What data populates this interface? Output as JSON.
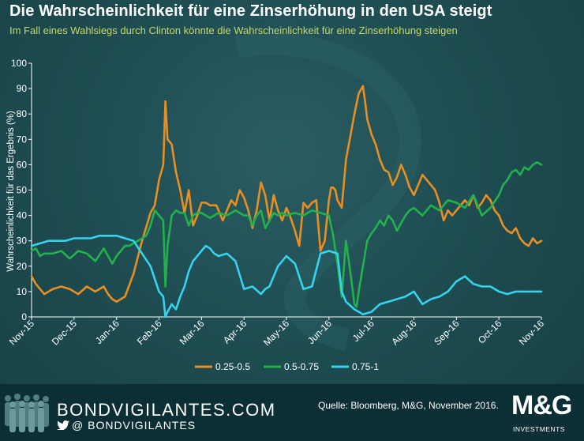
{
  "header": {
    "title": "Die Wahrscheinlichkeit  für eine Zinserhöhung in den USA steigt",
    "subtitle": "Im Fall eines Wahlsiegs durch Clinton könnte die Wahrscheinlichkeit für eine Zinserhöhung steigen"
  },
  "footer": {
    "brand": "BONDVIGILANTES.COM",
    "handle": "BONDVIGILANTES",
    "handle_prefix": "@",
    "source": "Quelle: Bloomberg, M&G,  November 2016.",
    "logo_text": "M&G",
    "logo_sub": "INVESTMENTS"
  },
  "chart_data": {
    "type": "line",
    "title": "Die Wahrscheinlichkeit  für eine Zinserhöhung in den USA steigt",
    "xlabel": "",
    "ylabel": "Wahrscheinlichkeit für das Ergebnis (%)",
    "ylim": [
      0,
      100
    ],
    "yticks": [
      0,
      10,
      20,
      30,
      40,
      50,
      60,
      70,
      80,
      90,
      100
    ],
    "xlim": [
      0,
      12
    ],
    "xticks": [
      "Nov-15",
      "Dec-15",
      "Jan-16",
      "Feb-16",
      "Mar-16",
      "Apr-16",
      "May-16",
      "Jun-16",
      "Jul-16",
      "Aug-16",
      "Sep-16",
      "Oct-16",
      "Nov-16"
    ],
    "legend_position": "bottom",
    "series": [
      {
        "name": "0.25-0.5",
        "color": "#e88f23",
        "x": [
          0,
          0.1,
          0.2,
          0.3,
          0.5,
          0.7,
          0.9,
          1.1,
          1.3,
          1.5,
          1.7,
          1.8,
          1.9,
          2.0,
          2.1,
          2.2,
          2.4,
          2.6,
          2.8,
          2.9,
          3.0,
          3.1,
          3.15,
          3.2,
          3.3,
          3.4,
          3.5,
          3.6,
          3.7,
          3.8,
          3.9,
          4.0,
          4.1,
          4.2,
          4.35,
          4.5,
          4.6,
          4.7,
          4.8,
          4.9,
          5.0,
          5.1,
          5.2,
          5.3,
          5.4,
          5.5,
          5.6,
          5.7,
          5.8,
          5.9,
          6.0,
          6.1,
          6.2,
          6.3,
          6.4,
          6.5,
          6.6,
          6.7,
          6.8,
          6.9,
          7.0,
          7.05,
          7.1,
          7.15,
          7.2,
          7.3,
          7.4,
          7.5,
          7.6,
          7.7,
          7.8,
          7.85,
          7.9,
          8.0,
          8.1,
          8.2,
          8.3,
          8.4,
          8.5,
          8.6,
          8.7,
          8.8,
          8.9,
          9.0,
          9.1,
          9.2,
          9.3,
          9.4,
          9.5,
          9.6,
          9.7,
          9.8,
          9.9,
          10.0,
          10.1,
          10.2,
          10.3,
          10.4,
          10.5,
          10.6,
          10.7,
          10.8,
          10.9,
          11.0,
          11.1,
          11.2,
          11.3,
          11.4,
          11.5,
          11.6,
          11.7,
          11.8,
          11.9,
          12.0
        ],
        "values": [
          16,
          13,
          11,
          9,
          11,
          12,
          11,
          9,
          12,
          10,
          12,
          9,
          7,
          6,
          7,
          8,
          17,
          30,
          41,
          44,
          54,
          60,
          85,
          70,
          68,
          57,
          50,
          41,
          50,
          36,
          40,
          45,
          45,
          44,
          44,
          38,
          42,
          46,
          44,
          50,
          47,
          42,
          35,
          42,
          53,
          48,
          38,
          48,
          42,
          38,
          43,
          39,
          34,
          28,
          45,
          43,
          45,
          46,
          26,
          30,
          46,
          51,
          51,
          50,
          46,
          43,
          62,
          71,
          80,
          88,
          91,
          85,
          78,
          72,
          68,
          62,
          58,
          57,
          52,
          55,
          60,
          56,
          51,
          48,
          52,
          56,
          54,
          52,
          50,
          45,
          38,
          42,
          40,
          42,
          44,
          46,
          44,
          48,
          43,
          45,
          48,
          46,
          42,
          40,
          36,
          34,
          33,
          35,
          31,
          29,
          28,
          31,
          29,
          30
        ]
      },
      {
        "name": "0.5-0.75",
        "color": "#22b14c",
        "x": [
          0,
          0.1,
          0.2,
          0.3,
          0.5,
          0.7,
          0.9,
          1.1,
          1.3,
          1.5,
          1.7,
          1.9,
          2.0,
          2.1,
          2.2,
          2.3,
          2.4,
          2.5,
          2.6,
          2.7,
          2.8,
          2.9,
          3.0,
          3.1,
          3.15,
          3.2,
          3.3,
          3.4,
          3.5,
          3.6,
          3.7,
          3.8,
          3.9,
          4.0,
          4.2,
          4.4,
          4.6,
          4.8,
          5.0,
          5.1,
          5.2,
          5.3,
          5.4,
          5.5,
          5.6,
          5.7,
          5.8,
          5.9,
          6.0,
          6.2,
          6.4,
          6.6,
          6.8,
          7.0,
          7.1,
          7.2,
          7.3,
          7.4,
          7.5,
          7.6,
          7.65,
          7.7,
          7.8,
          7.9,
          8.0,
          8.1,
          8.2,
          8.3,
          8.4,
          8.5,
          8.6,
          8.7,
          8.8,
          8.9,
          9.0,
          9.2,
          9.4,
          9.6,
          9.8,
          10.0,
          10.2,
          10.4,
          10.6,
          10.8,
          11.0,
          11.1,
          11.2,
          11.3,
          11.4,
          11.5,
          11.6,
          11.7,
          11.8,
          11.9,
          12.0
        ],
        "values": [
          26,
          27,
          24,
          25,
          25,
          26,
          23,
          26,
          25,
          22,
          27,
          21,
          24,
          26,
          28,
          28,
          29,
          30,
          31,
          32,
          36,
          42,
          40,
          38,
          12,
          28,
          40,
          42,
          41,
          41,
          36,
          40,
          41,
          41,
          39,
          41,
          40,
          42,
          40,
          40,
          36,
          40,
          42,
          35,
          38,
          41,
          40,
          41,
          40,
          41,
          40,
          42,
          41,
          40,
          32,
          21,
          8,
          30,
          18,
          5,
          4,
          10,
          20,
          30,
          33,
          35,
          38,
          36,
          40,
          38,
          34,
          37,
          40,
          42,
          43,
          40,
          44,
          42,
          46,
          45,
          43,
          48,
          40,
          43,
          48,
          52,
          54,
          57,
          58,
          56,
          59,
          58,
          60,
          61,
          60
        ]
      },
      {
        "name": "0.75-1",
        "color": "#37d2ee",
        "x": [
          0,
          0.2,
          0.4,
          0.6,
          0.8,
          1.0,
          1.2,
          1.4,
          1.6,
          1.8,
          2.0,
          2.2,
          2.4,
          2.6,
          2.8,
          2.9,
          3.0,
          3.1,
          3.15,
          3.2,
          3.3,
          3.4,
          3.5,
          3.6,
          3.7,
          3.8,
          3.9,
          4.0,
          4.1,
          4.2,
          4.3,
          4.4,
          4.6,
          4.8,
          5.0,
          5.2,
          5.4,
          5.5,
          5.6,
          5.8,
          6.0,
          6.2,
          6.4,
          6.6,
          6.8,
          7.0,
          7.2,
          7.3,
          7.4,
          7.6,
          7.8,
          8.0,
          8.2,
          8.4,
          8.6,
          8.8,
          9.0,
          9.2,
          9.4,
          9.6,
          9.8,
          10.0,
          10.2,
          10.4,
          10.6,
          10.8,
          11.0,
          11.2,
          11.4,
          11.6,
          11.8,
          12.0
        ],
        "values": [
          28,
          29,
          30,
          30,
          30,
          31,
          31,
          31,
          32,
          32,
          32,
          31,
          30,
          25,
          20,
          15,
          10,
          8,
          0,
          2,
          5,
          3,
          8,
          12,
          18,
          22,
          24,
          26,
          28,
          27,
          25,
          24,
          25,
          22,
          11,
          12,
          9,
          11,
          12,
          20,
          24,
          21,
          11,
          12,
          25,
          26,
          25,
          10,
          6,
          3,
          1,
          2,
          5,
          6,
          7,
          8,
          10,
          5,
          7,
          8,
          10,
          14,
          16,
          13,
          12,
          12,
          10,
          9,
          10,
          10,
          10,
          10
        ]
      }
    ]
  }
}
